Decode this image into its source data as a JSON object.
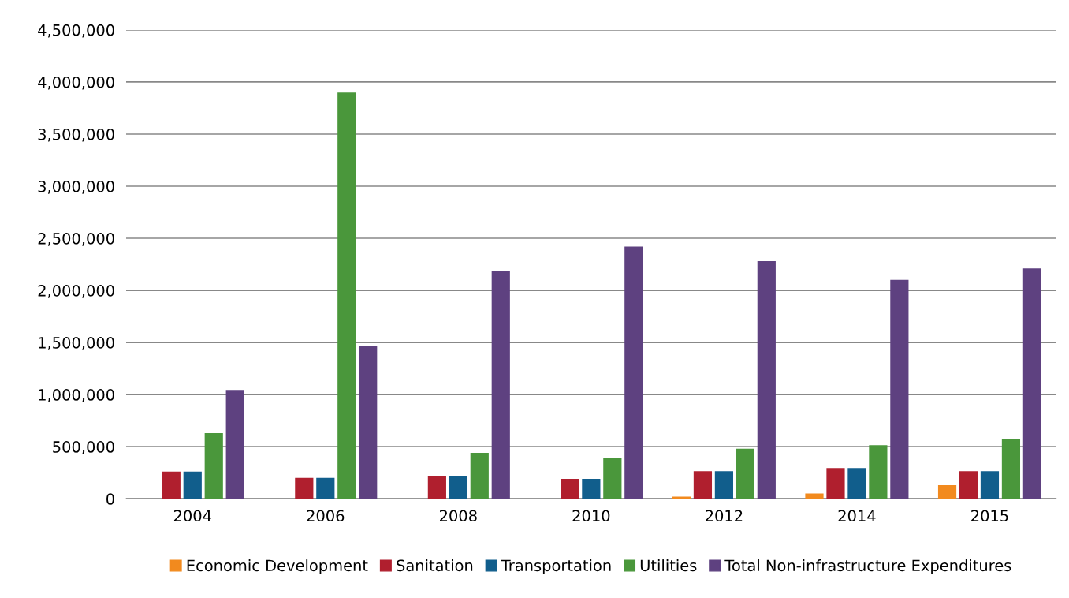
{
  "chart_data": {
    "type": "bar",
    "categories": [
      "2004",
      "2006",
      "2008",
      "2010",
      "2012",
      "2014",
      "2015"
    ],
    "series": [
      {
        "name": "Economic Development",
        "color": "#f28a1e",
        "values": [
          0,
          0,
          0,
          0,
          20000,
          50000,
          130000
        ]
      },
      {
        "name": "Sanitation",
        "color": "#b01f2e",
        "values": [
          260000,
          200000,
          220000,
          190000,
          265000,
          295000,
          265000
        ]
      },
      {
        "name": "Transportation",
        "color": "#115e8c",
        "values": [
          260000,
          200000,
          220000,
          190000,
          265000,
          295000,
          265000
        ]
      },
      {
        "name": "Utilities",
        "color": "#4a973b",
        "values": [
          630000,
          3900000,
          440000,
          395000,
          480000,
          515000,
          570000
        ]
      },
      {
        "name": "Total Non-infrastructure Expenditures",
        "color": "#5e4180",
        "values": [
          1045000,
          1470000,
          2190000,
          2420000,
          2280000,
          2100000,
          2210000
        ]
      }
    ],
    "ylim": [
      0,
      4500000
    ],
    "yticks": [
      {
        "value": 0,
        "label": "0"
      },
      {
        "value": 500000,
        "label": "500,000"
      },
      {
        "value": 1000000,
        "label": "1,000,000"
      },
      {
        "value": 1500000,
        "label": "1,500,000"
      },
      {
        "value": 2000000,
        "label": "2,000,000"
      },
      {
        "value": 2500000,
        "label": "2,500,000"
      },
      {
        "value": 3000000,
        "label": "3,000,000"
      },
      {
        "value": 3500000,
        "label": "3,500,000"
      },
      {
        "value": 4000000,
        "label": "4,000,000"
      },
      {
        "value": 4500000,
        "label": "4,500,000"
      }
    ],
    "grid": "y",
    "legend": "bottom"
  }
}
